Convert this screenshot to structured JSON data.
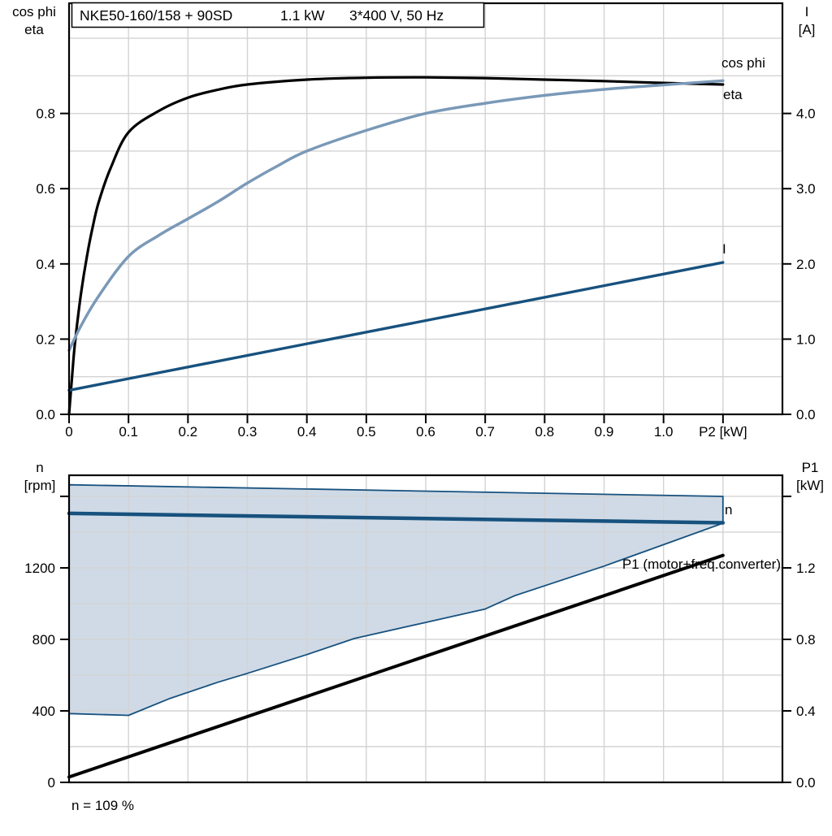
{
  "page": {
    "title_parts": [
      "NKE50-160/158 + 90SD",
      "1.1 kW",
      "3*400 V, 50 Hz"
    ],
    "footer_note": "n = 109 %"
  },
  "colors": {
    "curve_black": "#000000",
    "curve_light_blue": "#7a99b8",
    "curve_dark_blue": "#17517e",
    "band_fill": "#cfdae6",
    "grid": "#d3d3d3",
    "axis": "#000000"
  },
  "chart_data": [
    {
      "id": "motor-curves",
      "type": "line",
      "x_axis": {
        "label": "P2 [kW]",
        "min": 0,
        "max": 1.2,
        "grid_step": 0.1,
        "grid_max": 1.1,
        "ticks": [
          {
            "v": 0.0,
            "label": "0"
          },
          {
            "v": 0.1,
            "label": "0.1"
          },
          {
            "v": 0.2,
            "label": "0.2"
          },
          {
            "v": 0.3,
            "label": "0.3"
          },
          {
            "v": 0.4,
            "label": "0.4"
          },
          {
            "v": 0.5,
            "label": "0.5"
          },
          {
            "v": 0.6,
            "label": "0.6"
          },
          {
            "v": 0.7,
            "label": "0.7"
          },
          {
            "v": 0.8,
            "label": "0.8"
          },
          {
            "v": 0.9,
            "label": "0.9"
          },
          {
            "v": 1.0,
            "label": "1.0"
          },
          {
            "v": 1.1,
            "label": "P2 [kW]"
          }
        ]
      },
      "y_left": {
        "title_lines": [
          "cos phi",
          "eta"
        ],
        "min": 0,
        "max": 1.093,
        "grid_step": 0.1,
        "grid_max": 1.0,
        "ticks": [
          {
            "v": 0.0,
            "label": "0.0"
          },
          {
            "v": 0.2,
            "label": "0.2"
          },
          {
            "v": 0.4,
            "label": "0.4"
          },
          {
            "v": 0.6,
            "label": "0.6"
          },
          {
            "v": 0.8,
            "label": "0.8"
          }
        ]
      },
      "y_right": {
        "title_lines": [
          "I",
          "[A]"
        ],
        "min": 0,
        "max": 5.465,
        "ticks": [
          {
            "v": 0.0,
            "label": "0.0"
          },
          {
            "v": 1.0,
            "label": "1.0"
          },
          {
            "v": 2.0,
            "label": "2.0"
          },
          {
            "v": 3.0,
            "label": "3.0"
          },
          {
            "v": 4.0,
            "label": "4.0"
          }
        ]
      },
      "series": [
        {
          "name": "eta",
          "label": "eta",
          "axis": "left",
          "color_key": "curve_black",
          "width": 3.2,
          "smooth": true,
          "points": [
            [
              0,
              0
            ],
            [
              0.005,
              0.1
            ],
            [
              0.01,
              0.19
            ],
            [
              0.02,
              0.32
            ],
            [
              0.03,
              0.42
            ],
            [
              0.04,
              0.5
            ],
            [
              0.05,
              0.565
            ],
            [
              0.07,
              0.655
            ],
            [
              0.1,
              0.75
            ],
            [
              0.15,
              0.806
            ],
            [
              0.2,
              0.842
            ],
            [
              0.25,
              0.863
            ],
            [
              0.3,
              0.877
            ],
            [
              0.4,
              0.89
            ],
            [
              0.5,
              0.895
            ],
            [
              0.6,
              0.896
            ],
            [
              0.7,
              0.894
            ],
            [
              0.8,
              0.89
            ],
            [
              0.9,
              0.886
            ],
            [
              1.0,
              0.881
            ],
            [
              1.1,
              0.877
            ]
          ]
        },
        {
          "name": "cos phi",
          "label": "cos phi",
          "axis": "left",
          "color_key": "curve_light_blue",
          "width": 3.5,
          "smooth": true,
          "points": [
            [
              0,
              0.17
            ],
            [
              0.02,
              0.235
            ],
            [
              0.05,
              0.315
            ],
            [
              0.1,
              0.42
            ],
            [
              0.15,
              0.475
            ],
            [
              0.2,
              0.52
            ],
            [
              0.25,
              0.565
            ],
            [
              0.3,
              0.615
            ],
            [
              0.35,
              0.66
            ],
            [
              0.4,
              0.7
            ],
            [
              0.5,
              0.755
            ],
            [
              0.6,
              0.8
            ],
            [
              0.7,
              0.827
            ],
            [
              0.8,
              0.848
            ],
            [
              0.9,
              0.864
            ],
            [
              1.0,
              0.876
            ],
            [
              1.1,
              0.887
            ]
          ]
        },
        {
          "name": "I",
          "label": "I",
          "axis": "right",
          "color_key": "curve_dark_blue",
          "width": 3.4,
          "smooth": false,
          "points": [
            [
              0,
              0.32
            ],
            [
              0.55,
              1.17
            ],
            [
              1.1,
              2.02
            ]
          ]
        }
      ]
    },
    {
      "id": "speed-power",
      "type": "line",
      "x_axis": {
        "label": "",
        "min": 0,
        "max": 1.2,
        "grid_step": 0.1,
        "grid_max": 1.1,
        "ticks": []
      },
      "y_left": {
        "title_lines": [
          "n",
          "[rpm]"
        ],
        "min": 0,
        "max": 1718,
        "grid_step": 200,
        "grid_max": 1600,
        "ticks": [
          {
            "v": 0,
            "label": "0"
          },
          {
            "v": 400,
            "label": "400"
          },
          {
            "v": 800,
            "label": "800"
          },
          {
            "v": 1200,
            "label": "1200"
          },
          {
            "v": 1600,
            "label": ""
          }
        ]
      },
      "y_right": {
        "title_lines": [
          "P1",
          "[kW]"
        ],
        "min": 0,
        "max": 1.718,
        "ticks": [
          {
            "v": 0.0,
            "label": "0.0"
          },
          {
            "v": 0.4,
            "label": "0.4"
          },
          {
            "v": 0.8,
            "label": "0.8"
          },
          {
            "v": 1.2,
            "label": "1.2"
          },
          {
            "v": 1.6,
            "label": ""
          }
        ]
      },
      "band": {
        "name": "speed-range-band",
        "axis": "left",
        "upper": [
          [
            0,
            1665
          ],
          [
            1.1,
            1600
          ]
        ],
        "lower": [
          [
            0,
            385
          ],
          [
            0.1,
            375
          ],
          [
            0.17,
            470
          ],
          [
            0.25,
            560
          ],
          [
            0.3,
            610
          ],
          [
            0.4,
            715
          ],
          [
            0.48,
            805
          ],
          [
            0.6,
            895
          ],
          [
            0.7,
            970
          ],
          [
            0.75,
            1045
          ],
          [
            0.9,
            1210
          ],
          [
            1.0,
            1330
          ],
          [
            1.1,
            1450
          ]
        ]
      },
      "series": [
        {
          "name": "n",
          "label": "n",
          "axis": "left",
          "color_key": "curve_dark_blue",
          "width": 4.5,
          "smooth": false,
          "points": [
            [
              0,
              1505
            ],
            [
              1.1,
              1452
            ]
          ]
        },
        {
          "name": "P1 (motor+freq.converter)",
          "label": "P1 (motor+freq.converter)",
          "axis": "right",
          "color_key": "curve_black",
          "width": 4,
          "smooth": false,
          "points": [
            [
              0,
              0.03
            ],
            [
              1.1,
              1.27
            ]
          ]
        }
      ]
    }
  ]
}
